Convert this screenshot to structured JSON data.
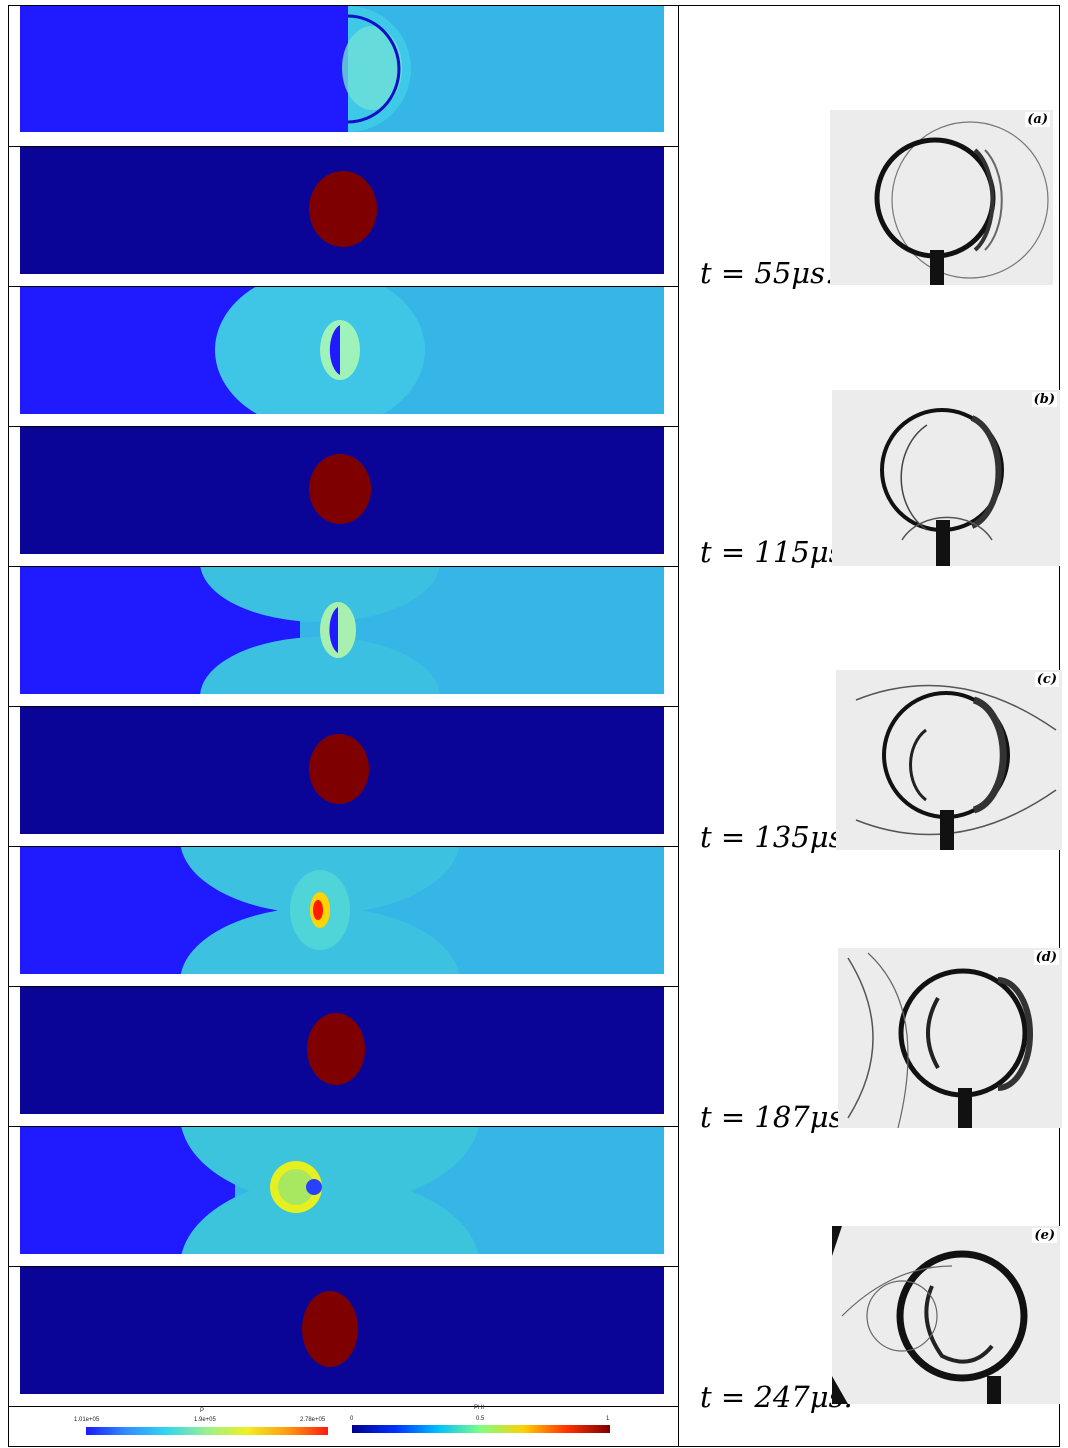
{
  "figure": {
    "rows": [
      {
        "time_label": "t = 55μs.",
        "photo_tag": "(a)"
      },
      {
        "time_label": "t = 115μs.",
        "photo_tag": "(b)"
      },
      {
        "time_label": "t = 135μs.",
        "photo_tag": "(c)"
      },
      {
        "time_label": "t = 187μs.",
        "photo_tag": "(d)"
      },
      {
        "time_label": "t = 247μs.",
        "photo_tag": "(e)"
      }
    ],
    "colorbars": {
      "pressure": {
        "title": "P",
        "min_label": "1.01e+05",
        "mid_label": "1.9e+05",
        "max_label": "2.78e+05"
      },
      "phi": {
        "title": "PHI",
        "min_label": "0",
        "mid_label": "0.5",
        "max_label": "1"
      }
    },
    "colors": {
      "pressure_background": "#1f1aff",
      "pressure_post_shock": "#35b6e6",
      "phi_background": "#0a0596",
      "phi_bubble": "#7f0000"
    }
  }
}
